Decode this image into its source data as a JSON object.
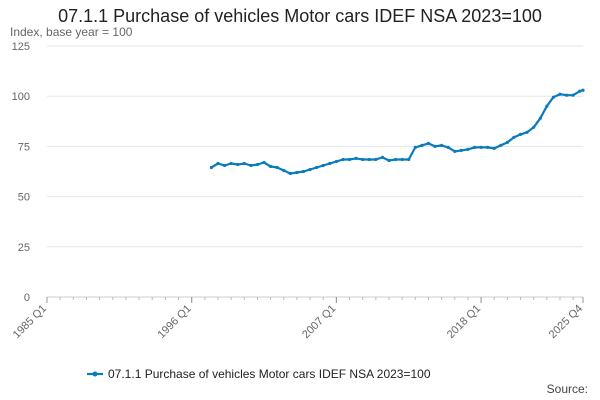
{
  "page": {
    "title": "07.1.1 Purchase of vehicles Motor cars IDEF NSA 2023=100",
    "subtitle": "Index, base year = 100",
    "source_label": "Source:"
  },
  "colors": {
    "series": "#0a7cbc",
    "grid": "#e6e6e6",
    "axis": "#666666",
    "text": "#222222"
  },
  "chart_data": {
    "type": "line",
    "title": "07.1.1 Purchase of vehicles Motor cars IDEF NSA 2023=100",
    "ylabel": "Index, base year = 100",
    "xlabel": "",
    "ylim": [
      0,
      125
    ],
    "yticks": [
      0,
      25,
      50,
      75,
      100,
      125
    ],
    "x_range": [
      1985,
      2025.75
    ],
    "xticks": [
      {
        "label": "1985 Q1",
        "t": 1985
      },
      {
        "label": "1996 Q1",
        "t": 1996
      },
      {
        "label": "2007 Q1",
        "t": 2007
      },
      {
        "label": "2018 Q1",
        "t": 2018
      },
      {
        "label": "2025 Q4",
        "t": 2025.75
      }
    ],
    "grid": true,
    "legend": "bottom-center",
    "series": [
      {
        "name": "07.1.1 Purchase of vehicles Motor cars IDEF NSA 2023=100",
        "points": [
          [
            1997.5,
            64.5
          ],
          [
            1998.0,
            66.5
          ],
          [
            1998.5,
            65.5
          ],
          [
            1999.0,
            66.5
          ],
          [
            1999.5,
            66.0
          ],
          [
            2000.0,
            66.5
          ],
          [
            2000.5,
            65.5
          ],
          [
            2001.0,
            66.0
          ],
          [
            2001.5,
            67.0
          ],
          [
            2002.0,
            65.0
          ],
          [
            2002.5,
            64.5
          ],
          [
            2003.0,
            63.0
          ],
          [
            2003.5,
            61.5
          ],
          [
            2004.0,
            62.0
          ],
          [
            2004.5,
            62.5
          ],
          [
            2005.0,
            63.5
          ],
          [
            2005.5,
            64.5
          ],
          [
            2006.0,
            65.5
          ],
          [
            2006.5,
            66.5
          ],
          [
            2007.0,
            67.5
          ],
          [
            2007.5,
            68.5
          ],
          [
            2008.0,
            68.5
          ],
          [
            2008.5,
            69.0
          ],
          [
            2009.0,
            68.5
          ],
          [
            2009.5,
            68.5
          ],
          [
            2010.0,
            68.5
          ],
          [
            2010.5,
            69.5
          ],
          [
            2011.0,
            68.0
          ],
          [
            2011.5,
            68.5
          ],
          [
            2012.0,
            68.5
          ],
          [
            2012.5,
            68.5
          ],
          [
            2013.0,
            74.5
          ],
          [
            2013.5,
            75.5
          ],
          [
            2014.0,
            76.5
          ],
          [
            2014.5,
            75.0
          ],
          [
            2015.0,
            75.5
          ],
          [
            2015.5,
            74.5
          ],
          [
            2016.0,
            72.5
          ],
          [
            2016.5,
            73.0
          ],
          [
            2017.0,
            73.5
          ],
          [
            2017.5,
            74.5
          ],
          [
            2018.0,
            74.5
          ],
          [
            2018.5,
            74.5
          ],
          [
            2019.0,
            74.0
          ],
          [
            2019.5,
            75.5
          ],
          [
            2020.0,
            77.0
          ],
          [
            2020.5,
            79.5
          ],
          [
            2021.0,
            81.0
          ],
          [
            2021.5,
            82.0
          ],
          [
            2022.0,
            84.5
          ],
          [
            2022.5,
            89.0
          ],
          [
            2023.0,
            95.0
          ],
          [
            2023.5,
            99.5
          ],
          [
            2024.0,
            101.0
          ],
          [
            2024.5,
            100.5
          ],
          [
            2025.0,
            100.5
          ],
          [
            2025.5,
            102.5
          ],
          [
            2025.75,
            103.0
          ]
        ]
      }
    ]
  }
}
